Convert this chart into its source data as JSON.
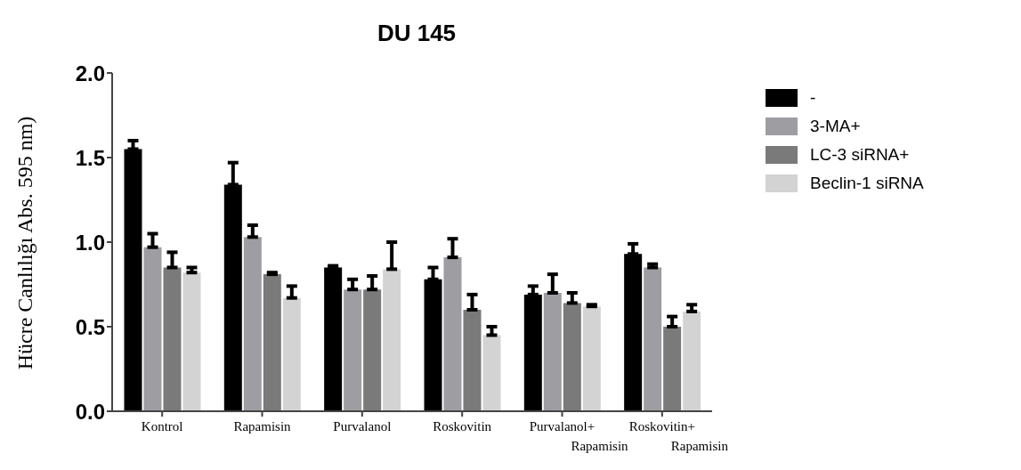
{
  "chart_data": {
    "type": "bar",
    "title": "DU 145",
    "ylabel": "Hücre Canlılığı Abs. 595 nm)",
    "categories": [
      "Kontrol",
      "Rapamisin",
      "Purvalanol",
      "Roskovitin",
      "Purvalanol+\nRapamisin",
      "Roskovitin+\nRapamisin"
    ],
    "series": [
      {
        "name": "-",
        "color": "#000000",
        "values": [
          1.55,
          1.34,
          0.85,
          0.78,
          0.69,
          0.93
        ],
        "errors": [
          [
            1.55,
            1.6
          ],
          [
            1.34,
            1.47
          ],
          [
            0.85,
            0.86
          ],
          [
            0.78,
            0.85
          ],
          [
            0.69,
            0.74
          ],
          [
            0.93,
            0.99
          ]
        ]
      },
      {
        "name": "3-MA+",
        "color": "#9e9ea2",
        "values": [
          0.97,
          1.03,
          0.72,
          0.91,
          0.7,
          0.85
        ],
        "errors": [
          [
            0.97,
            1.05
          ],
          [
            1.03,
            1.1
          ],
          [
            0.72,
            0.78
          ],
          [
            0.91,
            1.02
          ],
          [
            0.7,
            0.81
          ],
          [
            0.85,
            0.87
          ]
        ]
      },
      {
        "name": "LC-3 siRNA+",
        "color": "#7a7a7a",
        "values": [
          0.85,
          0.81,
          0.72,
          0.6,
          0.64,
          0.5
        ],
        "errors": [
          [
            0.85,
            0.94
          ],
          [
            0.81,
            0.82
          ],
          [
            0.72,
            0.8
          ],
          [
            0.6,
            0.69
          ],
          [
            0.64,
            0.7
          ],
          [
            0.5,
            0.56
          ]
        ]
      },
      {
        "name": "Beclin-1 siRNA",
        "color": "#d3d3d3",
        "values": [
          0.82,
          0.67,
          0.84,
          0.45,
          0.62,
          0.59
        ],
        "errors": [
          [
            0.82,
            0.85
          ],
          [
            0.67,
            0.74
          ],
          [
            0.84,
            1.0
          ],
          [
            0.45,
            0.5
          ],
          [
            0.62,
            0.63
          ],
          [
            0.59,
            0.63
          ]
        ]
      }
    ],
    "ylim": [
      0,
      2
    ],
    "yticks": [
      {
        "value": 0,
        "label": "0.0"
      },
      {
        "value": 0.5,
        "label": "0.5"
      },
      {
        "value": 1,
        "label": "1.0"
      },
      {
        "value": 1.5,
        "label": "1.5"
      },
      {
        "value": 2,
        "label": "2.0"
      }
    ],
    "grid": false,
    "legend": "top right"
  }
}
